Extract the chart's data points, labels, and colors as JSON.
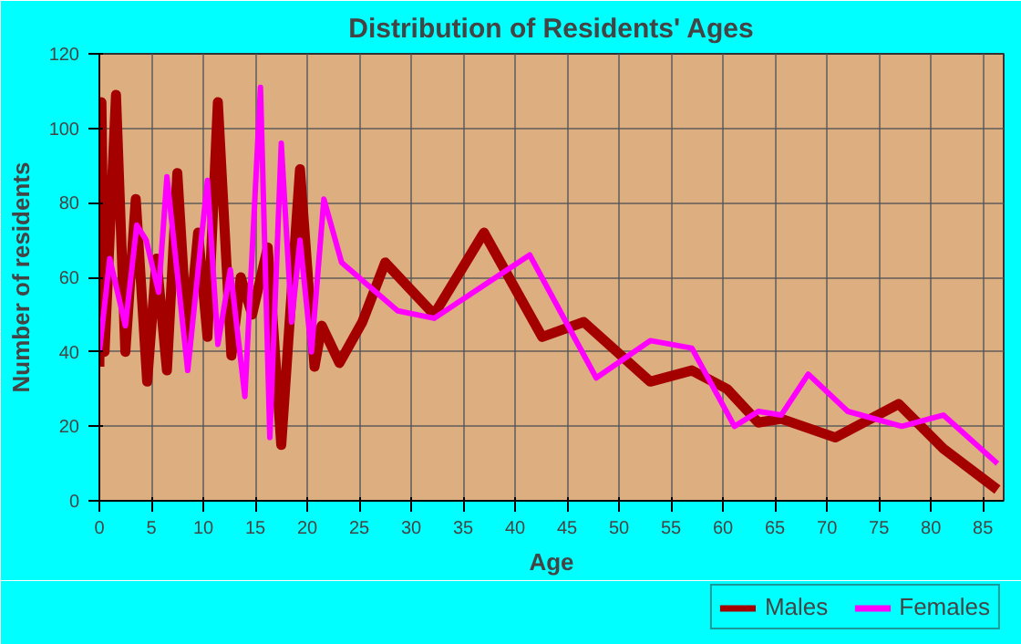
{
  "chart_data": {
    "type": "line",
    "title": "Distribution of Residents' Ages",
    "xlabel": "Age",
    "ylabel": "Number of residents",
    "xlim": [
      0,
      87
    ],
    "ylim": [
      0,
      120
    ],
    "xticks": [
      0,
      5,
      10,
      15,
      20,
      25,
      30,
      35,
      40,
      45,
      50,
      55,
      60,
      65,
      70,
      75,
      80,
      85
    ],
    "yticks": [
      0,
      20,
      40,
      60,
      80,
      100,
      120
    ],
    "grid": true,
    "legend": "bottom right",
    "series": [
      {
        "name": "Males",
        "color": "#a50000",
        "x": [
          0,
          0.2,
          0.5,
          1.6,
          2.5,
          3.5,
          4.6,
          5.5,
          6.5,
          7.5,
          8.5,
          9.5,
          10.4,
          11.4,
          12.7,
          13.6,
          14.7,
          16.2,
          17.5,
          19.3,
          20.7,
          21.4,
          23.1,
          25.3,
          27.5,
          32.2,
          37,
          42.6,
          46.6,
          53,
          57,
          60.4,
          63.4,
          65.6,
          70.8,
          76.9,
          81.2,
          86.4
        ],
        "values": [
          36,
          107,
          40,
          109,
          40,
          81,
          32,
          65,
          35,
          88,
          42,
          72,
          44,
          107,
          39,
          60,
          50,
          68,
          15,
          89,
          36,
          47,
          37,
          48,
          64,
          50,
          72,
          44,
          48,
          32,
          35,
          30,
          21,
          22,
          17,
          26,
          14,
          3
        ]
      },
      {
        "name": "Females",
        "color": "#ff00ff",
        "x": [
          0,
          1.0,
          2.5,
          3.6,
          4.5,
          5.7,
          6.5,
          8.5,
          10.4,
          11.4,
          12.6,
          14.0,
          15.5,
          16.4,
          17.5,
          18.5,
          19.3,
          20.4,
          21.6,
          23.3,
          28.7,
          32.2,
          41.4,
          47.8,
          53,
          57,
          61.1,
          63.4,
          65.6,
          68.2,
          72,
          77.2,
          81.2,
          86.4
        ],
        "values": [
          40,
          65,
          47,
          74,
          70,
          56,
          87,
          35,
          86,
          42,
          62,
          28,
          111,
          17,
          96,
          48,
          70,
          40,
          81,
          64,
          51,
          49,
          66,
          33,
          43,
          41,
          20,
          24,
          23,
          34,
          24,
          20,
          23,
          10
        ]
      }
    ]
  }
}
